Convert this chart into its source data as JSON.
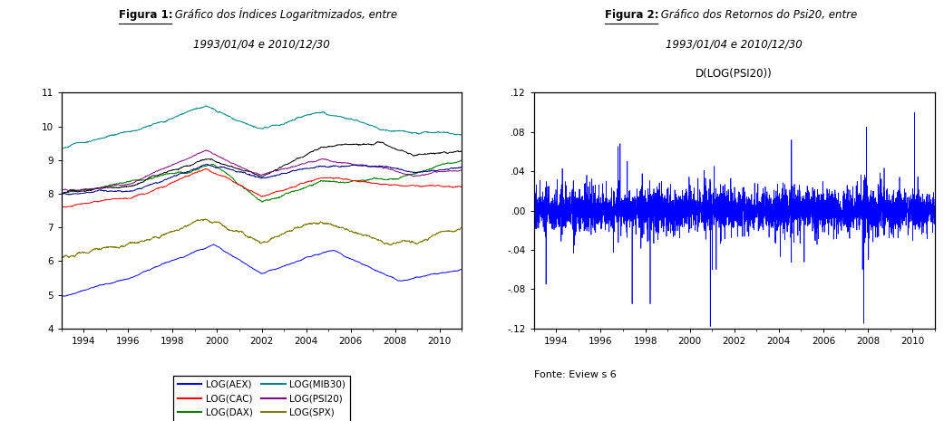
{
  "fig1_title_line1_bold": "Figura 1:",
  "fig1_title_line1_italic": " Gráfico dos Índices Logaritmizados, entre",
  "fig1_title_line2": "1993/01/04 e 2010/12/30",
  "fig2_title_line1_bold": "Figura 2:",
  "fig2_title_line1_italic": " Gráfico dos Retornos do Psi20, entre",
  "fig2_title_line2": "1993/01/04 e 2010/12/30",
  "fig2_subtitle": "D(LOG(PSI20))",
  "fonte_text": "Fonte: Eview s 6",
  "fig1_ylim": [
    4,
    11
  ],
  "fig1_yticks": [
    4,
    5,
    6,
    7,
    8,
    9,
    10,
    11
  ],
  "fig2_ylim": [
    -0.12,
    0.12
  ],
  "fig2_yticks": [
    -0.12,
    -0.08,
    -0.04,
    0.0,
    0.04,
    0.08,
    0.12
  ],
  "fig2_yticklabels": [
    "-.12",
    "-.08",
    "-.04",
    ".00",
    ".04",
    ".08",
    ".12"
  ],
  "xticks_years": [
    1994,
    1996,
    1998,
    2000,
    2002,
    2004,
    2006,
    2008,
    2010
  ],
  "line_colors": {
    "AEX": "#0000FF",
    "DAX": "#008000",
    "MIB30": "#008B8B",
    "SPX": "#808000",
    "CAC": "#FF0000",
    "IBEX": "#000000",
    "PSI20": "#800080",
    "UKX": "#00008B"
  },
  "fig2_line_color": "#0000FF",
  "background_color": "#FFFFFF",
  "seed": 42
}
